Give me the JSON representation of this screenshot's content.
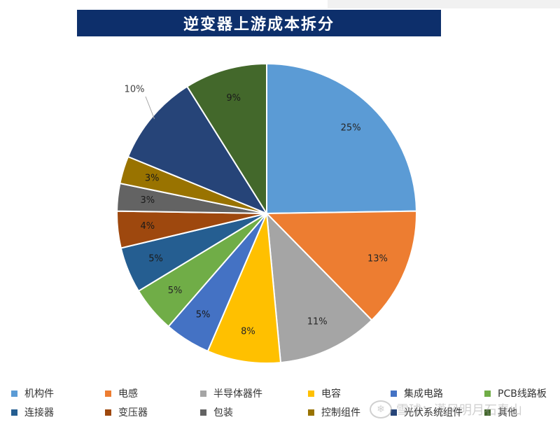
{
  "title": "逆变器上游成本拆分",
  "watermark": "雪球：潇风明月石寿山",
  "chart_data": {
    "type": "pie",
    "title": "逆变器上游成本拆分",
    "legend_position": "bottom",
    "slices": [
      {
        "name": "机构件",
        "value": 25,
        "label": "25%",
        "color": "#5b9bd5"
      },
      {
        "name": "电感",
        "value": 13,
        "label": "13%",
        "color": "#ed7d31"
      },
      {
        "name": "半导体器件",
        "value": 11,
        "label": "11%",
        "color": "#a5a5a5"
      },
      {
        "name": "电容",
        "value": 8,
        "label": "8%",
        "color": "#ffc000"
      },
      {
        "name": "集成电路",
        "value": 5,
        "label": "5%",
        "color": "#4472c4"
      },
      {
        "name": "PCB线路板",
        "value": 5,
        "label": "5%",
        "color": "#70ad47"
      },
      {
        "name": "连接器",
        "value": 5,
        "label": "5%",
        "color": "#255e91"
      },
      {
        "name": "变压器",
        "value": 4,
        "label": "4%",
        "color": "#9e480e"
      },
      {
        "name": "包装",
        "value": 3,
        "label": "3%",
        "color": "#636363"
      },
      {
        "name": "控制组件",
        "value": 3,
        "label": "3%",
        "color": "#997300"
      },
      {
        "name": "光伏系统组件",
        "value": 10,
        "label": "10%",
        "color": "#264478"
      },
      {
        "name": "其他",
        "value": 9,
        "label": "9%",
        "color": "#43682b"
      }
    ]
  }
}
